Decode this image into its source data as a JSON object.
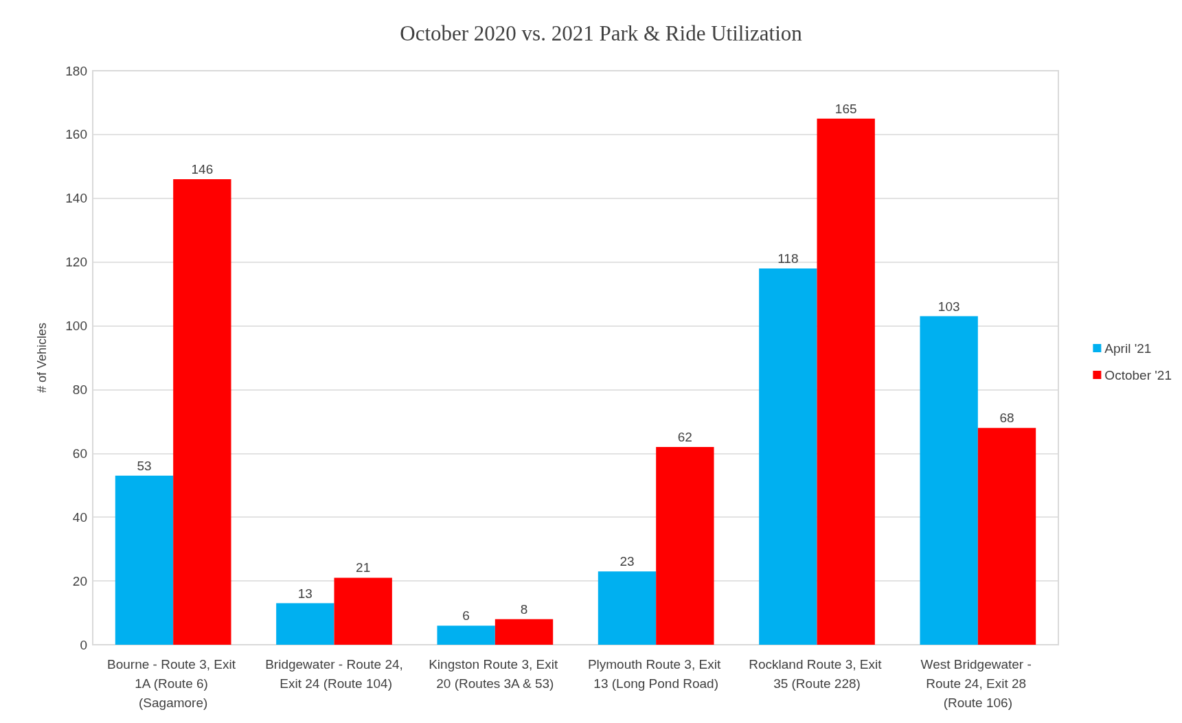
{
  "chart_data": {
    "type": "bar",
    "title": "October 2020 vs. 2021 Park & Ride Utilization",
    "ylabel": "# of Vehicles",
    "categories": [
      "Bourne - Route 3, Exit 1A (Route 6) (Sagamore)",
      "Bridgewater - Route 24, Exit 24 (Route 104)",
      "Kingston Route 3, Exit 20 (Routes 3A & 53)",
      "Plymouth Route 3, Exit 13 (Long Pond Road)",
      "Rockland Route 3, Exit 35 (Route 228)",
      "West Bridgewater - Route 24, Exit 28 (Route 106)"
    ],
    "series": [
      {
        "name": "April '21",
        "color": "#00b0f0",
        "values": [
          53,
          13,
          6,
          23,
          118,
          103
        ]
      },
      {
        "name": "October '21",
        "color": "#ff0000",
        "values": [
          146,
          21,
          8,
          62,
          165,
          68
        ]
      }
    ],
    "ylim": [
      0,
      180
    ],
    "yticks": [
      0,
      20,
      40,
      60,
      80,
      100,
      120,
      140,
      160,
      180
    ],
    "grid": "y",
    "legend": "right",
    "data_labels": true
  }
}
